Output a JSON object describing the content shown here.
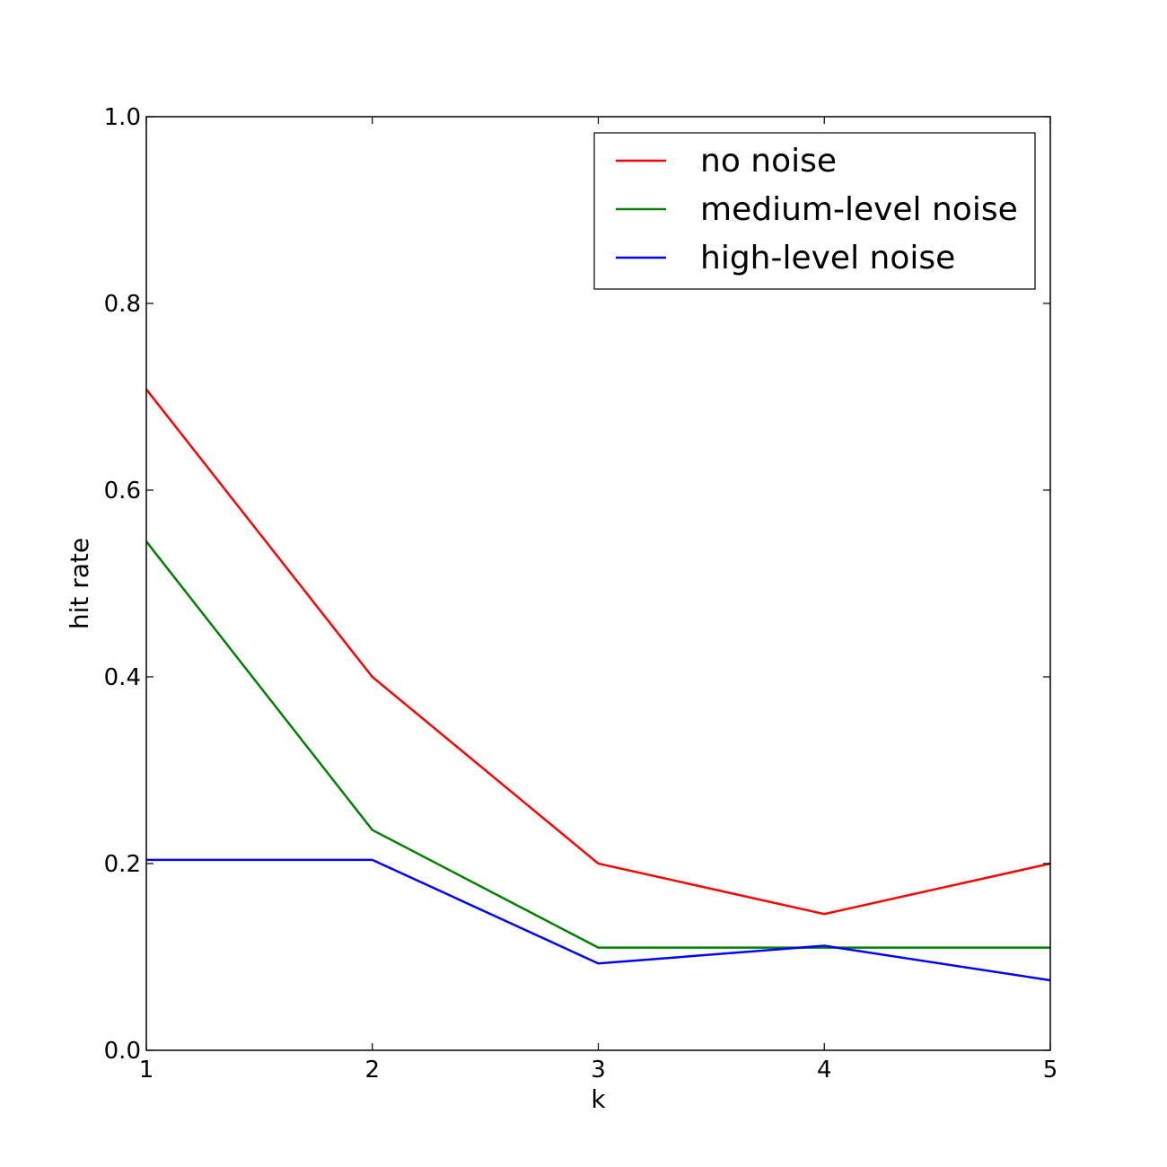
{
  "chart_data": {
    "type": "line",
    "x": [
      1,
      2,
      3,
      4,
      5
    ],
    "xlabel": "k",
    "ylabel": "hit rate",
    "xlim": [
      1,
      5
    ],
    "ylim": [
      0.0,
      1.0
    ],
    "xticks": [
      "1",
      "2",
      "3",
      "4",
      "5"
    ],
    "yticks": [
      "0.0",
      "0.2",
      "0.4",
      "0.6",
      "0.8",
      "1.0"
    ],
    "grid": false,
    "legend_position": "top-right",
    "series": [
      {
        "name": "no noise",
        "color": "#ff0000",
        "values": [
          0.708,
          0.4,
          0.2,
          0.146,
          0.2
        ]
      },
      {
        "name": "medium-level noise",
        "color": "#008000",
        "values": [
          0.545,
          0.236,
          0.11,
          0.11,
          0.11
        ]
      },
      {
        "name": "high-level noise",
        "color": "#0000ff",
        "values": [
          0.204,
          0.204,
          0.093,
          0.112,
          0.075
        ]
      }
    ]
  }
}
